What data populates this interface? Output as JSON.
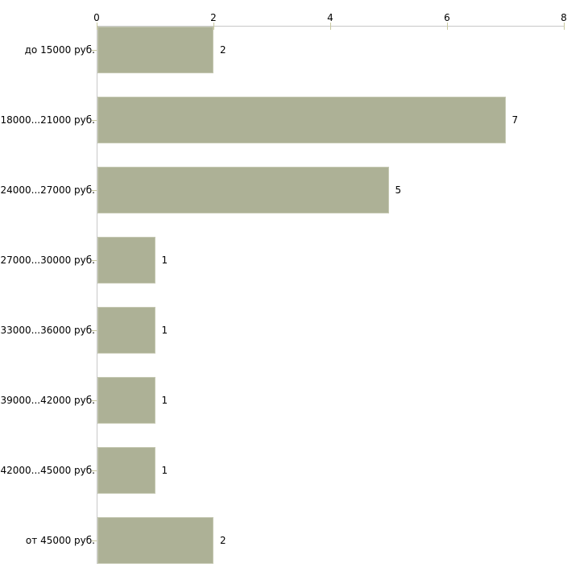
{
  "chart_data": {
    "type": "bar",
    "orientation": "horizontal",
    "title": "",
    "xlabel": "",
    "ylabel": "",
    "legend": "none",
    "grid": false,
    "categories": [
      "до 15000 руб.",
      "18000...21000 руб.",
      "24000...27000 руб.",
      "27000...30000 руб.",
      "33000...36000 руб.",
      "39000...42000 руб.",
      "42000...45000 руб.",
      "от 45000 руб."
    ],
    "values": [
      2,
      7,
      5,
      1,
      1,
      1,
      1,
      2
    ],
    "x_ticks": [
      "0",
      "2",
      "4",
      "6",
      "8"
    ],
    "x_tick_values": [
      0,
      2,
      4,
      6,
      8
    ],
    "xlim": [
      0,
      8
    ],
    "axis_position": "top",
    "colors": {
      "background": "#ffffff",
      "bar_fill": "#adb196",
      "bar_edge": "#c6c9b3",
      "axis_line": "#c8c8c8",
      "tick_mark": "#c9c99f",
      "text": "#000000"
    }
  }
}
